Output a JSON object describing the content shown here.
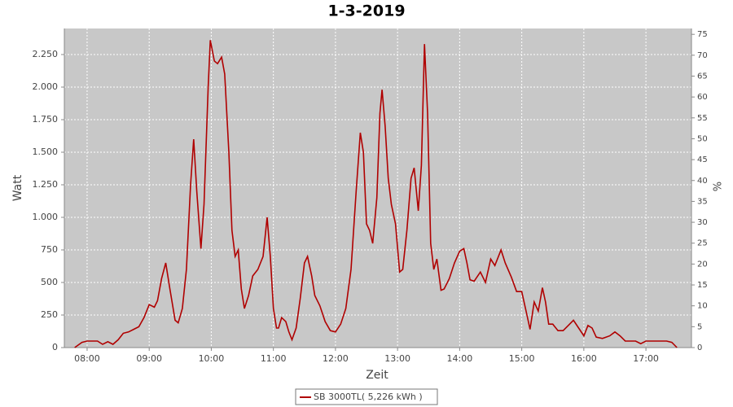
{
  "chart_data": {
    "type": "line",
    "title": "1-3-2019",
    "x_label": "Zeit",
    "y_label": "Watt",
    "y2_label": "%",
    "x": [
      468,
      475,
      480,
      490,
      495,
      500,
      505,
      510,
      515,
      520,
      525,
      530,
      535,
      540,
      545,
      548,
      552,
      556,
      560,
      565,
      568,
      572,
      576,
      580,
      583,
      586,
      590,
      593,
      597,
      599,
      603,
      606,
      610,
      613,
      617,
      620,
      623,
      626,
      629,
      632,
      636,
      640,
      645,
      650,
      654,
      657,
      660,
      663,
      665,
      668,
      672,
      675,
      678,
      682,
      686,
      690,
      693,
      697,
      700,
      705,
      710,
      715,
      720,
      725,
      730,
      735,
      740,
      744,
      747,
      750,
      753,
      756,
      760,
      763,
      765,
      768,
      771,
      774,
      778,
      782,
      785,
      789,
      793,
      796,
      800,
      803,
      806,
      809,
      812,
      815,
      818,
      822,
      825,
      830,
      835,
      840,
      844,
      847,
      850,
      854,
      860,
      865,
      870,
      874,
      880,
      884,
      890,
      895,
      900,
      905,
      908,
      912,
      916,
      920,
      923,
      926,
      930,
      935,
      940,
      945,
      950,
      955,
      960,
      964,
      968,
      972,
      978,
      985,
      990,
      995,
      1000,
      1010,
      1015,
      1020,
      1030,
      1040,
      1045,
      1050
    ],
    "series": [
      {
        "name": "SB 3000TL( 5,226 kWh )",
        "color": "#b00000",
        "values": [
          0,
          40,
          50,
          50,
          25,
          45,
          25,
          60,
          110,
          120,
          140,
          160,
          230,
          330,
          310,
          360,
          530,
          650,
          450,
          210,
          190,
          300,
          600,
          1250,
          1600,
          1200,
          760,
          1100,
          2000,
          2360,
          2200,
          2180,
          2230,
          2100,
          1500,
          900,
          700,
          750,
          450,
          300,
          400,
          550,
          600,
          700,
          1000,
          700,
          300,
          150,
          150,
          230,
          200,
          120,
          60,
          150,
          380,
          650,
          700,
          550,
          400,
          320,
          200,
          130,
          120,
          180,
          300,
          600,
          1200,
          1650,
          1500,
          950,
          900,
          800,
          1150,
          1800,
          1980,
          1700,
          1300,
          1100,
          950,
          580,
          600,
          900,
          1300,
          1380,
          1050,
          1400,
          2330,
          1800,
          800,
          600,
          680,
          440,
          450,
          530,
          650,
          740,
          760,
          650,
          520,
          510,
          580,
          500,
          680,
          630,
          750,
          650,
          540,
          430,
          430,
          250,
          140,
          350,
          280,
          460,
          350,
          180,
          180,
          130,
          130,
          170,
          210,
          150,
          90,
          170,
          150,
          80,
          70,
          90,
          120,
          90,
          50,
          50,
          30,
          50,
          50,
          50,
          40,
          0
        ]
      }
    ],
    "xlim": [
      458,
      1064
    ],
    "xticks": [
      {
        "value": 480,
        "label": "08:00"
      },
      {
        "value": 540,
        "label": "09:00"
      },
      {
        "value": 600,
        "label": "10:00"
      },
      {
        "value": 660,
        "label": "11:00"
      },
      {
        "value": 720,
        "label": "12:00"
      },
      {
        "value": 780,
        "label": "13:00"
      },
      {
        "value": 840,
        "label": "14:00"
      },
      {
        "value": 900,
        "label": "15:00"
      },
      {
        "value": 960,
        "label": "16:00"
      },
      {
        "value": 1020,
        "label": "17:00"
      }
    ],
    "ylim": [
      0,
      2450
    ],
    "yticks": [
      0,
      250,
      500,
      750,
      {
        "value": 1000,
        "label": "1.000"
      },
      {
        "value": 1250,
        "label": "1.250"
      },
      {
        "value": 1500,
        "label": "1.500"
      },
      {
        "value": 1750,
        "label": "1.750"
      },
      {
        "value": 2000,
        "label": "2.000"
      },
      {
        "value": 2250,
        "label": "2.250"
      }
    ],
    "y2lim": [
      0,
      76.4
    ],
    "y2ticks": [
      0,
      5,
      10,
      15,
      20,
      25,
      30,
      35,
      40,
      45,
      50,
      55,
      60,
      65,
      70,
      75
    ],
    "grid": true
  }
}
